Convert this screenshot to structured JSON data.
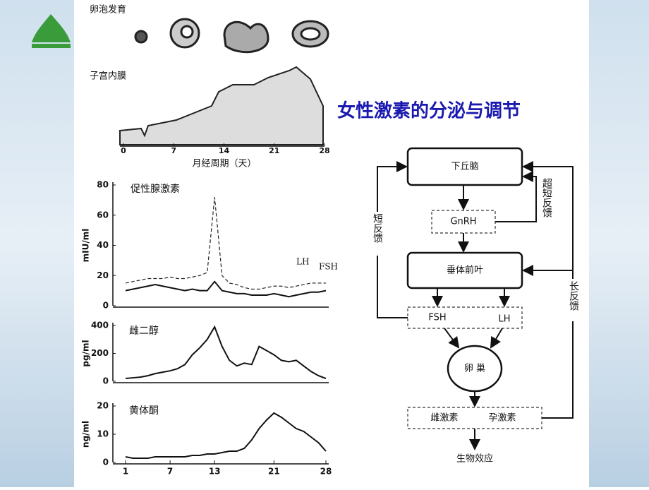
{
  "title": "女性激素的分泌与调节",
  "follicle": {
    "label": "卵泡发育"
  },
  "endometrium": {
    "label": "子宫内膜",
    "xlabel": "月经周期（天）",
    "xlim": [
      0,
      28
    ],
    "xticks": [
      0,
      7,
      14,
      21,
      28
    ]
  },
  "chart_data": [
    {
      "type": "line",
      "title": "促性腺激素",
      "ylabel": "mIU/ml",
      "xlim": [
        1,
        28
      ],
      "ylim": [
        0,
        80
      ],
      "yticks": [
        0,
        20,
        40,
        60,
        80
      ],
      "x": [
        1,
        2,
        3,
        4,
        5,
        6,
        7,
        8,
        9,
        10,
        11,
        12,
        13,
        14,
        15,
        16,
        17,
        18,
        19,
        20,
        21,
        22,
        23,
        24,
        25,
        26,
        27,
        28
      ],
      "series": [
        {
          "name": "LH",
          "color": "#222222",
          "dashed": true,
          "values": [
            15,
            16,
            17,
            18,
            18,
            18,
            19,
            18,
            18,
            19,
            20,
            22,
            72,
            20,
            15,
            14,
            12,
            11,
            11,
            12,
            13,
            13,
            12,
            13,
            14,
            15,
            15,
            15
          ]
        },
        {
          "name": "FSH",
          "color": "#111111",
          "dashed": false,
          "values": [
            10,
            11,
            12,
            13,
            14,
            13,
            12,
            11,
            10,
            11,
            10,
            10,
            16,
            10,
            9,
            8,
            8,
            7,
            7,
            7,
            8,
            7,
            6,
            7,
            8,
            9,
            9,
            10
          ]
        }
      ]
    },
    {
      "type": "line",
      "title": "雌二醇",
      "ylabel": "pg/ml",
      "xlim": [
        1,
        28
      ],
      "ylim": [
        0,
        400
      ],
      "yticks": [
        0,
        200,
        400
      ],
      "x": [
        1,
        2,
        3,
        4,
        5,
        6,
        7,
        8,
        9,
        10,
        11,
        12,
        13,
        14,
        15,
        16,
        17,
        18,
        19,
        20,
        21,
        22,
        23,
        24,
        25,
        26,
        27,
        28
      ],
      "series": [
        {
          "name": "雌二醇",
          "color": "#111111",
          "dashed": false,
          "values": [
            20,
            25,
            30,
            40,
            55,
            65,
            75,
            90,
            120,
            190,
            240,
            300,
            390,
            250,
            150,
            110,
            130,
            120,
            250,
            220,
            190,
            150,
            140,
            150,
            110,
            70,
            40,
            20
          ]
        }
      ]
    },
    {
      "type": "line",
      "title": "黄体酮",
      "ylabel": "ng/ml",
      "xlim": [
        1,
        28
      ],
      "ylim": [
        0,
        20
      ],
      "yticks": [
        0,
        10,
        20
      ],
      "xticks": [
        1,
        7,
        13,
        21,
        28
      ],
      "x": [
        1,
        2,
        3,
        4,
        5,
        6,
        7,
        8,
        9,
        10,
        11,
        12,
        13,
        14,
        15,
        16,
        17,
        18,
        19,
        20,
        21,
        22,
        23,
        24,
        25,
        26,
        27,
        28
      ],
      "series": [
        {
          "name": "黄体酮",
          "color": "#111111",
          "dashed": false,
          "values": [
            2,
            1.5,
            1.5,
            1.5,
            2,
            2,
            2,
            2,
            2,
            2.5,
            2.5,
            3,
            3,
            3.5,
            4,
            4,
            5,
            8,
            12,
            15,
            17.5,
            16,
            14,
            12,
            11,
            9,
            7,
            4
          ]
        }
      ]
    }
  ],
  "diagram": {
    "nodes": [
      "下丘脑",
      "GnRH",
      "垂体前叶",
      "FSH",
      "LH",
      "卵 巢",
      "雌激素",
      "孕激素",
      "生物效应"
    ],
    "feedback": [
      "超短反馈",
      "短反馈",
      "长反馈"
    ]
  }
}
